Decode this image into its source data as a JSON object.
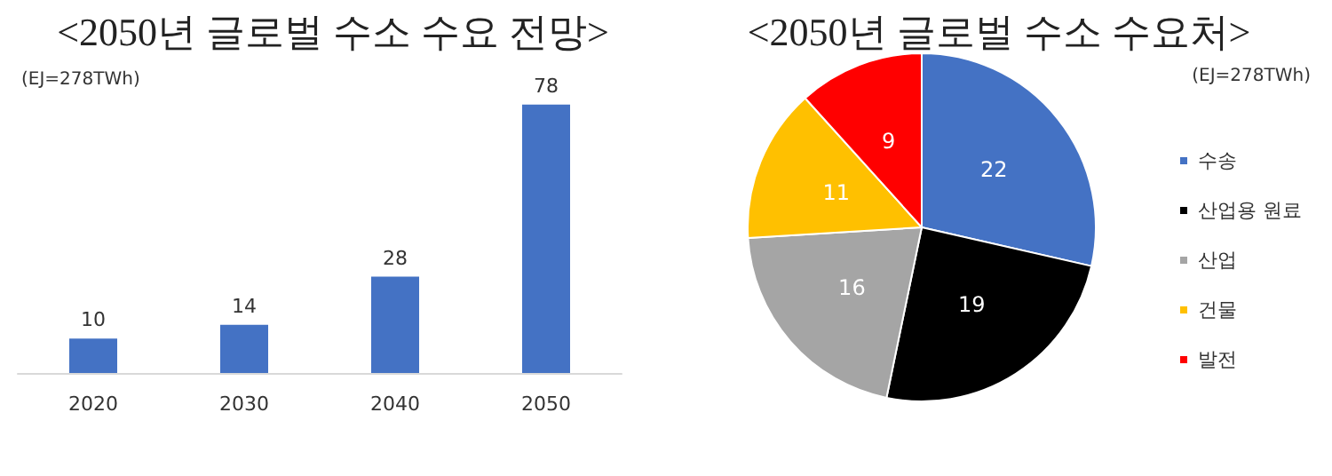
{
  "chart_data": [
    {
      "type": "bar",
      "title": "<2050년 글로벌 수소 수요 전망>",
      "annotations": [
        "(EJ=278TWh)"
      ],
      "categories": [
        "2020",
        "2030",
        "2040",
        "2050"
      ],
      "values": [
        10,
        14,
        28,
        78
      ],
      "color": "#4472c4",
      "data_labels": true,
      "grid": false,
      "legend": false
    },
    {
      "type": "pie",
      "title": "<2050년 글로벌 수소 수요처>",
      "annotations": [
        "(EJ=278TWh)"
      ],
      "categories": [
        "수송",
        "산업용 원료",
        "산업",
        "건물",
        "발전"
      ],
      "values": [
        22,
        19,
        16,
        11,
        9
      ],
      "colors": [
        "#4472c4",
        "#000000",
        "#a5a5a5",
        "#ffc000",
        "#ff0000"
      ],
      "data_labels": true,
      "legend": "right"
    }
  ]
}
